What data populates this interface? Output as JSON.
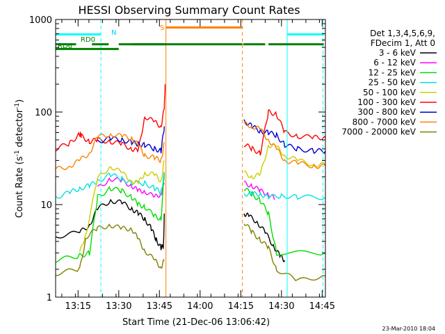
{
  "chart_data": {
    "type": "line",
    "title": "HESSI Observing Summary Count Rates",
    "xlabel": "Start Time (21-Dec-06 13:06:42)",
    "ylabel_main": "Count Rate (s",
    "ylabel_sup1": "-1",
    "ylabel_mid": " detector",
    "ylabel_sup2": "-1",
    "ylabel_end": ")",
    "yscale": "log",
    "ylim": [
      1,
      1000
    ],
    "xlim": [
      13.112,
      14.77
    ],
    "yticks": [
      {
        "v": 1,
        "label": "1"
      },
      {
        "v": 10,
        "label": "10"
      },
      {
        "v": 100,
        "label": "100"
      },
      {
        "v": 1000,
        "label": "1000"
      }
    ],
    "xticks": [
      {
        "v": 13.25,
        "label": "13:15"
      },
      {
        "v": 13.5,
        "label": "13:30"
      },
      {
        "v": 13.75,
        "label": "13:45"
      },
      {
        "v": 14.0,
        "label": "14:00"
      },
      {
        "v": 14.25,
        "label": "14:15"
      },
      {
        "v": 14.5,
        "label": "14:30"
      },
      {
        "v": 14.75,
        "label": "14:45"
      }
    ],
    "legend_header": [
      "Det 1,3,4,5,6,9,",
      "FDecim 1, Att 0"
    ],
    "legend_position": "right",
    "series": [
      {
        "name": "3 - 6 keV",
        "color": "#000000",
        "segments": [
          [
            [
              13.112,
              4.5
            ],
            [
              13.26,
              5
            ],
            [
              13.32,
              6
            ],
            [
              13.37,
              9
            ],
            [
              13.45,
              11
            ],
            [
              13.52,
              10.5
            ],
            [
              13.58,
              9
            ],
            [
              13.62,
              8
            ],
            [
              13.66,
              7
            ],
            [
              13.7,
              5.5
            ],
            [
              13.73,
              4.2
            ],
            [
              13.76,
              3.4
            ],
            [
              13.775,
              3.6
            ],
            [
              13.78,
              8
            ]
          ],
          [
            [
              14.27,
              8
            ],
            [
              14.3,
              7.5
            ],
            [
              14.35,
              6.5
            ],
            [
              14.4,
              5
            ],
            [
              14.45,
              3.6
            ],
            [
              14.49,
              2.8
            ],
            [
              14.52,
              2.5
            ]
          ]
        ]
      },
      {
        "name": "6 - 12 keV",
        "color": "#ff00ff",
        "segments": [
          [
            [
              13.37,
              15
            ],
            [
              13.45,
              19
            ],
            [
              13.52,
              18
            ],
            [
              13.58,
              16
            ],
            [
              13.62,
              14
            ],
            [
              13.66,
              14
            ],
            [
              13.72,
              12
            ],
            [
              13.76,
              13
            ],
            [
              13.78,
              17
            ]
          ],
          [
            [
              14.27,
              17
            ],
            [
              14.32,
              16
            ],
            [
              14.37,
              14
            ],
            [
              14.42,
              13
            ],
            [
              14.46,
              11.5
            ]
          ]
        ]
      },
      {
        "name": "12 - 25 keV",
        "color": "#00dd00",
        "segments": [
          [
            [
              13.112,
              2.5
            ],
            [
              13.26,
              2.8
            ],
            [
              13.32,
              3
            ],
            [
              13.37,
              12
            ],
            [
              13.45,
              15
            ],
            [
              13.52,
              14
            ],
            [
              13.58,
              12
            ],
            [
              13.62,
              10
            ],
            [
              13.66,
              9.5
            ],
            [
              13.72,
              7.5
            ],
            [
              13.76,
              7
            ],
            [
              13.78,
              22
            ]
          ],
          [
            [
              14.27,
              15
            ],
            [
              14.32,
              13
            ],
            [
              14.37,
              11
            ],
            [
              14.42,
              8
            ],
            [
              14.47,
              3
            ],
            [
              14.77,
              3
            ]
          ]
        ]
      },
      {
        "name": "25 - 50 keV",
        "color": "#00e0e0",
        "segments": [
          [
            [
              13.112,
              12
            ],
            [
              13.2,
              13.5
            ],
            [
              13.26,
              15
            ],
            [
              13.32,
              16
            ],
            [
              13.37,
              18
            ],
            [
              13.45,
              21
            ],
            [
              13.52,
              19
            ],
            [
              13.58,
              17
            ],
            [
              13.66,
              17
            ],
            [
              13.72,
              15
            ],
            [
              13.76,
              13.5
            ],
            [
              13.78,
              22
            ]
          ],
          [
            [
              14.27,
              13
            ],
            [
              14.32,
              13
            ],
            [
              14.37,
              13
            ],
            [
              14.42,
              12
            ],
            [
              14.5,
              12.5
            ],
            [
              14.6,
              12
            ],
            [
              14.77,
              12
            ]
          ]
        ]
      },
      {
        "name": "50 - 100 keV",
        "color": "#cccc00",
        "segments": [
          [
            [
              13.26,
              3
            ],
            [
              13.3,
              5
            ],
            [
              13.37,
              19
            ],
            [
              13.45,
              26
            ],
            [
              13.52,
              22
            ],
            [
              13.58,
              18
            ],
            [
              13.62,
              17
            ],
            [
              13.66,
              22
            ],
            [
              13.72,
              21
            ],
            [
              13.76,
              18
            ],
            [
              13.78,
              30
            ]
          ],
          [
            [
              14.27,
              22
            ],
            [
              14.32,
              20
            ],
            [
              14.37,
              21
            ],
            [
              14.42,
              44
            ],
            [
              14.47,
              42
            ],
            [
              14.52,
              34
            ],
            [
              14.6,
              30
            ],
            [
              14.7,
              27
            ],
            [
              14.77,
              27
            ]
          ]
        ]
      },
      {
        "name": "100 - 300 keV",
        "color": "#ff0000",
        "segments": [
          [
            [
              13.112,
              40
            ],
            [
              13.2,
              46
            ],
            [
              13.26,
              58
            ],
            [
              13.27,
              55
            ],
            [
              13.32,
              48
            ],
            [
              13.37,
              50
            ],
            [
              13.45,
              48
            ],
            [
              13.52,
              45
            ],
            [
              13.58,
              40
            ],
            [
              13.62,
              38
            ],
            [
              13.66,
              90
            ],
            [
              13.72,
              78
            ],
            [
              13.76,
              70
            ],
            [
              13.78,
              110
            ],
            [
              13.785,
              200
            ]
          ],
          [
            [
              14.27,
              45
            ],
            [
              14.32,
              40
            ],
            [
              14.37,
              36
            ],
            [
              14.42,
              100
            ],
            [
              14.47,
              95
            ],
            [
              14.52,
              60
            ],
            [
              14.6,
              55
            ],
            [
              14.7,
              53
            ],
            [
              14.77,
              53
            ]
          ]
        ]
      },
      {
        "name": "300 - 800 keV",
        "color": "#0000cc",
        "segments": [
          [
            [
              13.37,
              48
            ],
            [
              13.45,
              52
            ],
            [
              13.52,
              50
            ],
            [
              13.58,
              47
            ],
            [
              13.62,
              45
            ],
            [
              13.66,
              44
            ],
            [
              13.72,
              40
            ],
            [
              13.76,
              38
            ],
            [
              13.78,
              70
            ]
          ],
          [
            [
              14.27,
              80
            ],
            [
              14.32,
              70
            ],
            [
              14.37,
              62
            ],
            [
              14.42,
              60
            ],
            [
              14.47,
              56
            ],
            [
              14.52,
              44
            ],
            [
              14.6,
              40
            ],
            [
              14.7,
              38
            ],
            [
              14.77,
              38
            ]
          ]
        ]
      },
      {
        "name": "800 - 7000 keV",
        "color": "#ff8000",
        "segments": [
          [
            [
              13.112,
              24
            ],
            [
              13.2,
              26
            ],
            [
              13.26,
              30
            ],
            [
              13.32,
              36
            ],
            [
              13.37,
              54
            ],
            [
              13.45,
              57
            ],
            [
              13.52,
              55
            ],
            [
              13.58,
              52
            ],
            [
              13.62,
              44
            ],
            [
              13.66,
              34
            ],
            [
              13.72,
              32
            ],
            [
              13.76,
              30
            ],
            [
              13.78,
              46
            ]
          ],
          [
            [
              14.27,
              75
            ],
            [
              14.32,
              70
            ],
            [
              14.37,
              65
            ],
            [
              14.42,
              50
            ],
            [
              14.47,
              40
            ],
            [
              14.52,
              30
            ],
            [
              14.6,
              28
            ],
            [
              14.7,
              26
            ],
            [
              14.77,
              26
            ]
          ]
        ]
      },
      {
        "name": "7000 - 20000 keV",
        "color": "#808000",
        "segments": [
          [
            [
              13.112,
              1.8
            ],
            [
              13.26,
              2
            ],
            [
              13.3,
              4.5
            ],
            [
              13.37,
              5.5
            ],
            [
              13.45,
              6
            ],
            [
              13.52,
              5.5
            ],
            [
              13.58,
              5.5
            ],
            [
              13.62,
              4.2
            ],
            [
              13.66,
              3.2
            ],
            [
              13.72,
              2.5
            ],
            [
              13.76,
              2.1
            ],
            [
              13.78,
              2.5
            ]
          ],
          [
            [
              14.27,
              6.5
            ],
            [
              14.32,
              5
            ],
            [
              14.37,
              4.2
            ],
            [
              14.42,
              3.4
            ],
            [
              14.47,
              2
            ],
            [
              14.6,
              1.5
            ],
            [
              14.77,
              1.7
            ]
          ]
        ]
      }
    ],
    "flag_bars": [
      {
        "label": "N",
        "color": "#00ffff",
        "segments": [
          [
            13.112,
            13.39
          ],
          [
            14.535,
            14.76
          ]
        ],
        "level": 690
      },
      {
        "label": "S",
        "color": "#ff8000",
        "segments": [
          [
            13.79,
            14.26
          ]
        ],
        "level": 820
      },
      {
        "label": "RD0",
        "color": "#008000",
        "segments": [
          [
            13.112,
            13.238
          ],
          [
            13.335,
            13.438
          ],
          [
            13.585,
            14.26
          ],
          [
            14.265,
            14.4
          ],
          [
            14.42,
            14.76
          ]
        ],
        "level": 540
      },
      {
        "label": "RD6",
        "color": "#008000",
        "segments": [],
        "level": 540
      }
    ],
    "flag_labels": {
      "N": "N",
      "S": "S",
      "RD0": "RD0",
      "RD6": "RD6"
    },
    "vlines": [
      {
        "x": 13.112,
        "color": "#00ffff",
        "dash": false
      },
      {
        "x": 13.39,
        "color": "#00ffff",
        "dash": true
      },
      {
        "x": 13.79,
        "color": "#ff8000",
        "dash": false
      },
      {
        "x": 14.26,
        "color": "#ff8000",
        "dash": true
      },
      {
        "x": 14.535,
        "color": "#00ffff",
        "dash": false
      },
      {
        "x": 14.755,
        "color": "#00ffff",
        "dash": true
      }
    ]
  },
  "footer": {
    "timestamp": "23-Mar-2010 18:04"
  }
}
